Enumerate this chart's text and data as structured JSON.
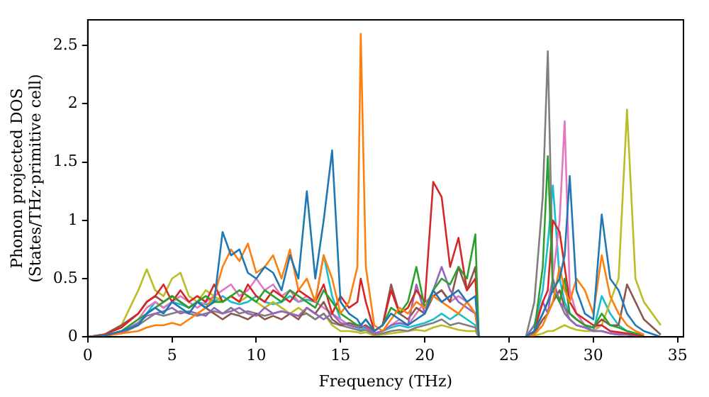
{
  "chart_data": {
    "type": "line",
    "xlabel": "Frequency (THz)",
    "ylabel": "Phonon projected DOS\n(States/THz·primitive cell)",
    "x": [
      0,
      1,
      2,
      3,
      3.5,
      4,
      4.5,
      5,
      5.5,
      6,
      6.5,
      7,
      7.5,
      8,
      8.5,
      9,
      9.5,
      10,
      10.5,
      11,
      11.5,
      12,
      12.5,
      13,
      13.5,
      14,
      14.5,
      15,
      15.5,
      16,
      16.2,
      16.5,
      17,
      17.5,
      18,
      18.5,
      19,
      19.5,
      20,
      20.5,
      21,
      21.5,
      22,
      22.5,
      23,
      23.2,
      24,
      26,
      26.5,
      27,
      27.3,
      27.6,
      28,
      28.3,
      28.6,
      29,
      29.5,
      30,
      30.5,
      31,
      31.5,
      32,
      32.5,
      33,
      34
    ],
    "xlim": [
      0,
      35.35
    ],
    "xticks": [
      0,
      5,
      10,
      15,
      20,
      25,
      30,
      35
    ],
    "ylim": [
      0,
      2.72
    ],
    "yticks": [
      0,
      0.5,
      1,
      1.5,
      2,
      2.5
    ],
    "grid": false,
    "legend": false,
    "series": [
      {
        "color": "#1f77b4",
        "values": [
          0,
          0.01,
          0.05,
          0.1,
          0.2,
          0.25,
          0.2,
          0.3,
          0.25,
          0.2,
          0.3,
          0.25,
          0.3,
          0.9,
          0.7,
          0.75,
          0.55,
          0.5,
          0.6,
          0.55,
          0.4,
          0.7,
          0.5,
          1.25,
          0.5,
          1.0,
          1.6,
          0.3,
          0.2,
          0.15,
          0.1,
          0.15,
          0.05,
          0.1,
          0.2,
          0.15,
          0.1,
          0.15,
          0.2,
          0.4,
          0.3,
          0.35,
          0.4,
          0.3,
          0.35,
          0,
          null,
          0,
          0.05,
          0.2,
          0.3,
          0.4,
          0.5,
          0.7,
          1.38,
          0.4,
          0.2,
          0.15,
          1.05,
          0.5,
          0.4,
          0.2,
          0.1,
          0.05,
          0
        ]
      },
      {
        "color": "#ff7f0e",
        "values": [
          0,
          0.01,
          0.03,
          0.05,
          0.08,
          0.1,
          0.1,
          0.12,
          0.1,
          0.15,
          0.2,
          0.25,
          0.35,
          0.6,
          0.75,
          0.65,
          0.8,
          0.55,
          0.6,
          0.7,
          0.5,
          0.75,
          0.4,
          0.5,
          0.3,
          0.7,
          0.5,
          0.2,
          0.3,
          0.6,
          2.6,
          0.6,
          0.1,
          0.05,
          0.15,
          0.25,
          0.2,
          0.3,
          0.25,
          0.35,
          0.3,
          0.25,
          0.2,
          0.3,
          0.2,
          0,
          0,
          0,
          0.02,
          0.1,
          0.2,
          0.3,
          0.6,
          0.4,
          0.3,
          0.5,
          0.4,
          0.2,
          0.7,
          0.35,
          0.2,
          0.1,
          0.05,
          0.02,
          null
        ]
      },
      {
        "color": "#2ca02c",
        "values": [
          0,
          0.01,
          0.05,
          0.15,
          0.2,
          0.25,
          0.3,
          0.35,
          0.3,
          0.25,
          0.3,
          0.35,
          0.3,
          0.3,
          0.35,
          0.4,
          0.35,
          0.3,
          0.4,
          0.35,
          0.3,
          0.4,
          0.35,
          0.3,
          0.25,
          0.4,
          0.3,
          0.2,
          0.15,
          0.1,
          0.1,
          0.15,
          0.05,
          0.1,
          0.25,
          0.2,
          0.3,
          0.6,
          0.25,
          0.4,
          0.5,
          0.45,
          0.6,
          0.5,
          0.88,
          0,
          0,
          0,
          0.05,
          0.6,
          1.55,
          0.4,
          0.3,
          0.5,
          0.2,
          0.15,
          0.1,
          0.08,
          0.2,
          0.1,
          0.08,
          0.05,
          0.03,
          0.02,
          null
        ]
      },
      {
        "color": "#d62728",
        "values": [
          0,
          0.02,
          0.08,
          0.2,
          0.3,
          0.35,
          0.45,
          0.3,
          0.4,
          0.3,
          0.35,
          0.3,
          0.45,
          0.3,
          0.35,
          0.3,
          0.45,
          0.35,
          0.3,
          0.4,
          0.35,
          0.3,
          0.4,
          0.35,
          0.3,
          0.45,
          0.2,
          0.35,
          0.25,
          0.3,
          0.5,
          0.3,
          0.05,
          0.1,
          0.4,
          0.2,
          0.25,
          0.4,
          0.3,
          1.33,
          1.2,
          0.6,
          0.85,
          0.4,
          0.5,
          0,
          0,
          0,
          0.05,
          0.3,
          0.4,
          1.0,
          0.9,
          0.6,
          0.3,
          0.2,
          0.15,
          0.1,
          0.1,
          0.05,
          0.04,
          0.03,
          0.02,
          0.01,
          null
        ]
      },
      {
        "color": "#9467bd",
        "values": [
          0,
          0.01,
          0.04,
          0.12,
          0.18,
          0.2,
          0.22,
          0.25,
          0.2,
          0.22,
          0.2,
          0.18,
          0.25,
          0.2,
          0.22,
          0.25,
          0.2,
          0.18,
          0.25,
          0.2,
          0.22,
          0.2,
          0.18,
          0.25,
          0.2,
          0.15,
          0.2,
          0.12,
          0.1,
          0.08,
          0.1,
          0.08,
          0.03,
          0.05,
          0.1,
          0.12,
          0.1,
          0.45,
          0.2,
          0.4,
          0.6,
          0.4,
          0.3,
          0.25,
          0.2,
          0,
          0,
          0,
          0.1,
          0.3,
          0.2,
          0.5,
          0.3,
          0.25,
          0.15,
          0.1,
          0.08,
          0.05,
          0.05,
          0.03,
          0.02,
          0.02,
          0.01,
          0.01,
          null
        ]
      },
      {
        "color": "#8c564b",
        "values": [
          0,
          0.02,
          0.1,
          0.2,
          0.3,
          0.35,
          0.3,
          0.35,
          0.3,
          0.25,
          0.3,
          0.25,
          0.2,
          0.15,
          0.2,
          0.18,
          0.15,
          0.2,
          0.15,
          0.18,
          0.15,
          0.2,
          0.15,
          0.25,
          0.2,
          0.3,
          0.15,
          0.1,
          0.12,
          0.1,
          0.08,
          0.1,
          0.05,
          0.1,
          0.45,
          0.2,
          0.15,
          0.25,
          0.2,
          0.35,
          0.4,
          0.3,
          0.6,
          0.4,
          0.6,
          0,
          0,
          0,
          0.03,
          0.15,
          0.2,
          0.3,
          0.4,
          0.25,
          0.2,
          0.15,
          0.1,
          0.08,
          0.15,
          0.1,
          0.1,
          0.45,
          0.3,
          0.15,
          0.02
        ]
      },
      {
        "color": "#e377c2",
        "values": [
          0,
          0.01,
          0.05,
          0.15,
          0.25,
          0.3,
          0.25,
          0.3,
          0.35,
          0.3,
          0.25,
          0.3,
          0.35,
          0.4,
          0.45,
          0.35,
          0.4,
          0.5,
          0.4,
          0.45,
          0.35,
          0.4,
          0.3,
          0.35,
          0.3,
          0.25,
          0.2,
          0.15,
          0.1,
          0.1,
          0.08,
          0.1,
          0.03,
          0.05,
          0.1,
          0.15,
          0.1,
          0.2,
          0.3,
          0.35,
          0.4,
          0.3,
          0.35,
          0.3,
          0.2,
          0,
          0,
          0,
          0.05,
          0.2,
          0.3,
          0.5,
          1.0,
          1.85,
          0.4,
          0.2,
          0.1,
          0.08,
          0.1,
          0.05,
          0.03,
          0.02,
          0.02,
          0.01,
          null
        ]
      },
      {
        "color": "#7f7f7f",
        "values": [
          0,
          0.01,
          0.03,
          0.1,
          0.15,
          0.2,
          0.18,
          0.2,
          0.22,
          0.2,
          0.18,
          0.2,
          0.22,
          0.2,
          0.25,
          0.2,
          0.22,
          0.2,
          0.18,
          0.2,
          0.22,
          0.2,
          0.18,
          0.2,
          0.15,
          0.2,
          0.12,
          0.1,
          0.08,
          0.06,
          0.05,
          0.06,
          0.02,
          0.03,
          0.05,
          0.06,
          0.05,
          0.08,
          0.1,
          0.12,
          0.15,
          0.1,
          0.12,
          0.1,
          0.08,
          0,
          0,
          0,
          0.3,
          1.2,
          2.45,
          0.5,
          0.3,
          0.2,
          0.15,
          0.1,
          0.08,
          0.05,
          0.05,
          0.03,
          0.02,
          0.02,
          0.01,
          0.01,
          null
        ]
      },
      {
        "color": "#bcbd22",
        "values": [
          0,
          0.02,
          0.1,
          0.4,
          0.58,
          0.4,
          0.35,
          0.5,
          0.55,
          0.35,
          0.3,
          0.4,
          0.35,
          0.3,
          0.35,
          0.3,
          0.35,
          0.3,
          0.25,
          0.3,
          0.25,
          0.2,
          0.25,
          0.2,
          0.15,
          0.2,
          0.1,
          0.05,
          0.05,
          0.04,
          0.03,
          0.04,
          0.01,
          0.02,
          0.03,
          0.04,
          0.05,
          0.06,
          0.05,
          0.08,
          0.1,
          0.08,
          0.06,
          0.05,
          0.05,
          0,
          0,
          0,
          0.01,
          0.03,
          0.05,
          0.05,
          0.08,
          0.1,
          0.08,
          0.06,
          0.05,
          0.05,
          0.1,
          0.3,
          0.5,
          1.95,
          0.5,
          0.3,
          0.1
        ]
      },
      {
        "color": "#17becf",
        "values": [
          null,
          null,
          0.04,
          0.12,
          0.2,
          0.3,
          0.25,
          0.3,
          0.28,
          0.25,
          0.3,
          0.28,
          0.3,
          0.35,
          0.3,
          0.28,
          0.3,
          0.35,
          0.3,
          0.28,
          0.3,
          0.35,
          0.3,
          0.32,
          0.3,
          0.7,
          0.35,
          0.15,
          0.1,
          0.08,
          0.06,
          0.08,
          0.03,
          0.05,
          0.08,
          0.1,
          0.08,
          0.1,
          0.12,
          0.15,
          0.2,
          0.15,
          0.2,
          0.15,
          0.1,
          0,
          0,
          0,
          0.1,
          0.4,
          0.8,
          1.3,
          0.5,
          0.3,
          0.2,
          0.15,
          0.1,
          0.05,
          0.35,
          0.2,
          0.1,
          0.05,
          0.03,
          null,
          null
        ]
      }
    ]
  }
}
